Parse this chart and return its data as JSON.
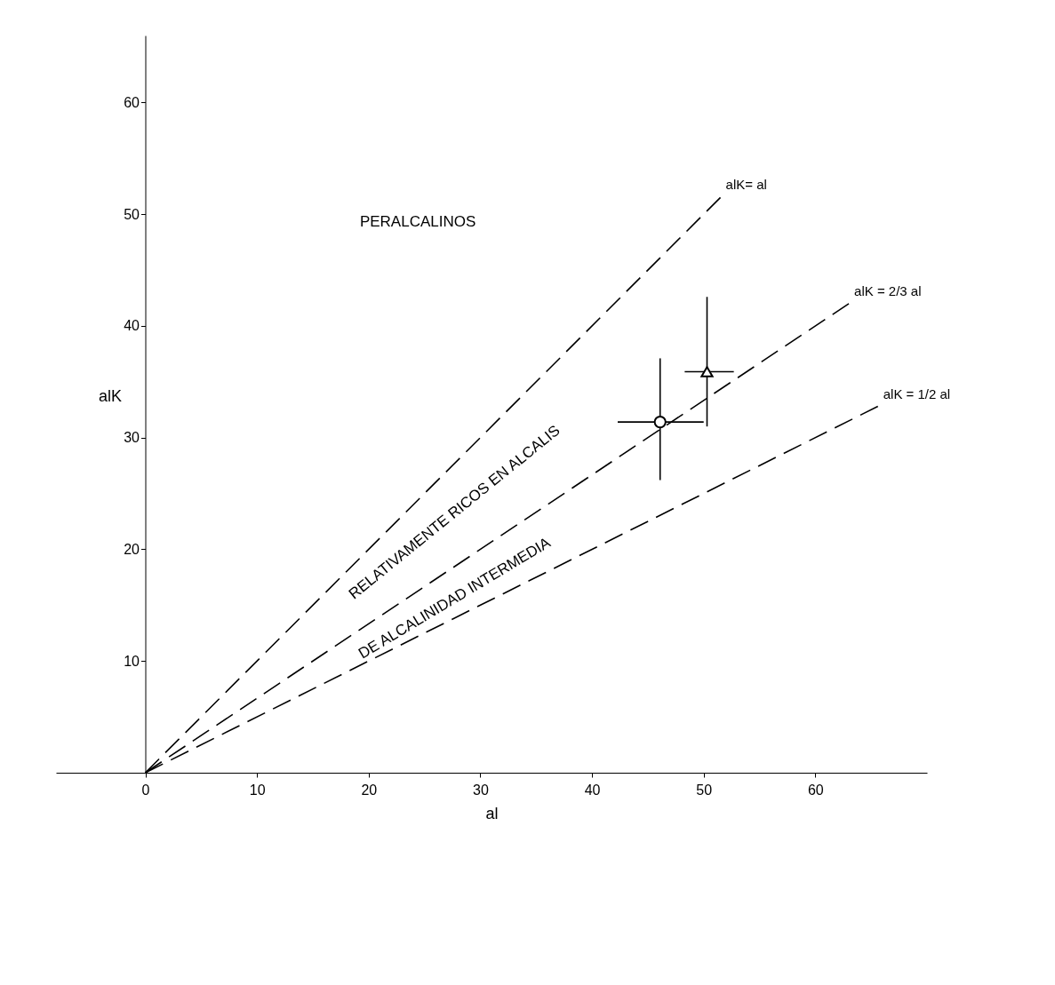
{
  "chart_data": {
    "type": "scatter",
    "xlabel": "al",
    "ylabel": "alK",
    "xlim": [
      -8,
      70
    ],
    "ylim": [
      0,
      66
    ],
    "xticks": [
      0,
      10,
      20,
      30,
      40,
      50,
      60
    ],
    "yticks": [
      10,
      20,
      30,
      40,
      50,
      60
    ],
    "grid": false,
    "series": [
      {
        "type": "line",
        "name": "alK= al",
        "color": "#000000",
        "line_style": "dashed",
        "x": [
          0,
          51.5
        ],
        "values": [
          0,
          51.5
        ]
      },
      {
        "type": "line",
        "name": "alK = 2/3 al",
        "color": "#000000",
        "line_style": "dashed",
        "x": [
          0,
          63
        ],
        "values": [
          0,
          42
        ]
      },
      {
        "type": "line",
        "name": "alK = 1/2 al",
        "color": "#000000",
        "line_style": "dashed",
        "x": [
          0,
          65.6
        ],
        "values": [
          0,
          32.8
        ]
      },
      {
        "type": "scatter",
        "color": "#000000",
        "marker": "circle",
        "x": [
          46.1
        ],
        "values": [
          31.4
        ],
        "errors": [
          [
            26.2,
            37.1
          ]
        ],
        "xerrors": [
          [
            42.3,
            50
          ]
        ]
      },
      {
        "type": "scatter",
        "color": "#000000",
        "marker": "triangle",
        "x": [
          50.3
        ],
        "values": [
          35.9
        ],
        "errors": [
          [
            31,
            42.6
          ]
        ],
        "xerrors": [
          [
            48.3,
            52.7
          ]
        ]
      }
    ],
    "annotations": [
      "PERALCALINOS",
      "RELATIVAMENTE  RICOS EN ALCALIS",
      "DE ALCALINIDAD INTERMEDIA"
    ]
  }
}
